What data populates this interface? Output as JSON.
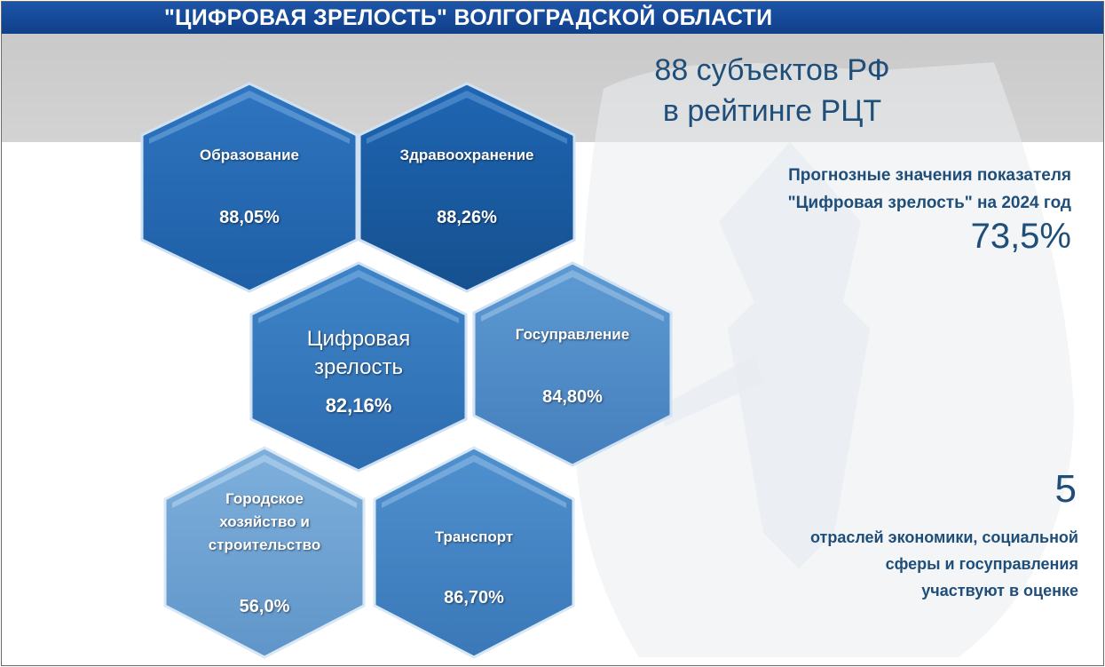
{
  "header": {
    "title": "\"ЦИФРОВАЯ ЗРЕЛОСТЬ\" ВОЛГОГРАДСКОЙ ОБЛАСТИ"
  },
  "rating": {
    "line1": "88 субъектов РФ",
    "line2": "в рейтинге РЦТ"
  },
  "forecast": {
    "line1": "Прогнозные значения показателя",
    "line2": "\"Цифровая зрелость\" на 2024 год",
    "value": "73,5%"
  },
  "sectors": {
    "count": "5",
    "line1": "отраслей экономики, социальной",
    "line2": "сферы и госуправления",
    "line3": "участвуют в оценке"
  },
  "hexagons": {
    "education": {
      "label": "Образование",
      "value": "88,05%",
      "color": "#2f75c0"
    },
    "healthcare": {
      "label": "Здравоохранение",
      "value": "88,26%",
      "color": "#1f66b3"
    },
    "digital": {
      "label_line1": "Цифровая",
      "label_line2": "зрелость",
      "value": "82,16%",
      "color": "#3f84c8"
    },
    "government": {
      "label": "Госуправление",
      "value": "84,80%",
      "color": "#5e9ad2"
    },
    "urban": {
      "label_line1": "Городское",
      "label_line2": "хозяйство и",
      "label_line3": "строительство",
      "value": "56,0%",
      "color": "#7fb0dc"
    },
    "transport": {
      "label": "Транспорт",
      "value": "86,70%",
      "color": "#4f90cf"
    }
  }
}
